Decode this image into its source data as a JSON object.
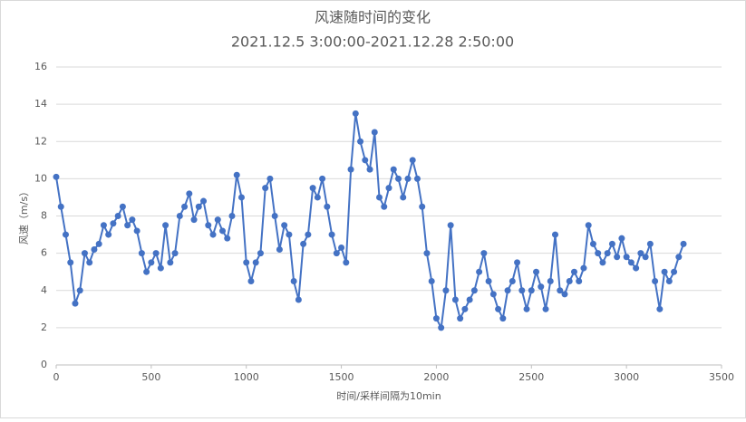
{
  "chart_data": {
    "type": "line",
    "title": "风速随时间的变化",
    "subtitle": "2021.12.5 3:00:00-2021.12.28 2:50:00",
    "x_label": "时间/采样间隔为10min",
    "y_label": "风速（m/s）",
    "xlim": [
      0,
      3500
    ],
    "xticks": [
      0,
      500,
      1000,
      1500,
      2000,
      2500,
      3000,
      3500
    ],
    "ylim": [
      0,
      16
    ],
    "yticks": [
      0,
      2,
      4,
      6,
      8,
      10,
      12,
      14,
      16
    ],
    "grid": true,
    "x": [
      0,
      25,
      50,
      75,
      100,
      125,
      150,
      175,
      200,
      225,
      250,
      275,
      300,
      325,
      350,
      375,
      400,
      425,
      450,
      475,
      500,
      525,
      550,
      575,
      600,
      625,
      650,
      675,
      700,
      725,
      750,
      775,
      800,
      825,
      850,
      875,
      900,
      925,
      950,
      975,
      1000,
      1025,
      1050,
      1075,
      1100,
      1125,
      1150,
      1175,
      1200,
      1225,
      1250,
      1275,
      1300,
      1325,
      1350,
      1375,
      1400,
      1425,
      1450,
      1475,
      1500,
      1525,
      1550,
      1575,
      1600,
      1625,
      1650,
      1675,
      1700,
      1725,
      1750,
      1775,
      1800,
      1825,
      1850,
      1875,
      1900,
      1925,
      1950,
      1975,
      2000,
      2025,
      2050,
      2075,
      2100,
      2125,
      2150,
      2175,
      2200,
      2225,
      2250,
      2275,
      2300,
      2325,
      2350,
      2375,
      2400,
      2425,
      2450,
      2475,
      2500,
      2525,
      2550,
      2575,
      2600,
      2625,
      2650,
      2675,
      2700,
      2725,
      2750,
      2775,
      2800,
      2825,
      2850,
      2875,
      2900,
      2925,
      2950,
      2975,
      3000,
      3025,
      3050,
      3075,
      3100,
      3125,
      3150,
      3175,
      3200,
      3225,
      3250,
      3275,
      3300
    ],
    "series": [
      {
        "name": "风速",
        "color": "#4472c4",
        "values": [
          10.1,
          8.5,
          7.0,
          5.5,
          3.3,
          4.0,
          6.0,
          5.5,
          6.2,
          6.5,
          7.5,
          7.0,
          7.6,
          8.0,
          8.5,
          7.5,
          7.8,
          7.2,
          6.0,
          5.0,
          5.5,
          6.0,
          5.2,
          7.5,
          5.5,
          6.0,
          8.0,
          8.5,
          9.2,
          7.8,
          8.5,
          8.8,
          7.5,
          7.0,
          7.8,
          7.2,
          6.8,
          8.0,
          10.2,
          9.0,
          5.5,
          4.5,
          5.5,
          6.0,
          9.5,
          10.0,
          8.0,
          6.2,
          7.5,
          7.0,
          4.5,
          3.5,
          6.5,
          7.0,
          9.5,
          9.0,
          10.0,
          8.5,
          7.0,
          6.0,
          6.3,
          5.5,
          10.5,
          13.5,
          12.0,
          11.0,
          10.5,
          12.5,
          9.0,
          8.5,
          9.5,
          10.5,
          10.0,
          9.0,
          10.0,
          11.0,
          10.0,
          8.5,
          6.0,
          4.5,
          2.5,
          2.0,
          4.0,
          7.5,
          3.5,
          2.5,
          3.0,
          3.5,
          4.0,
          5.0,
          6.0,
          4.5,
          3.8,
          3.0,
          2.5,
          4.0,
          4.5,
          5.5,
          4.0,
          3.0,
          4.0,
          5.0,
          4.2,
          3.0,
          4.5,
          7.0,
          4.0,
          3.8,
          4.5,
          5.0,
          4.5,
          5.2,
          7.5,
          6.5,
          6.0,
          5.5,
          6.0,
          6.5,
          5.8,
          6.8,
          5.8,
          5.5,
          5.2,
          6.0,
          5.8,
          6.5,
          4.5,
          3.0,
          5.0,
          4.5,
          5.0,
          5.8,
          6.5
        ]
      }
    ]
  }
}
